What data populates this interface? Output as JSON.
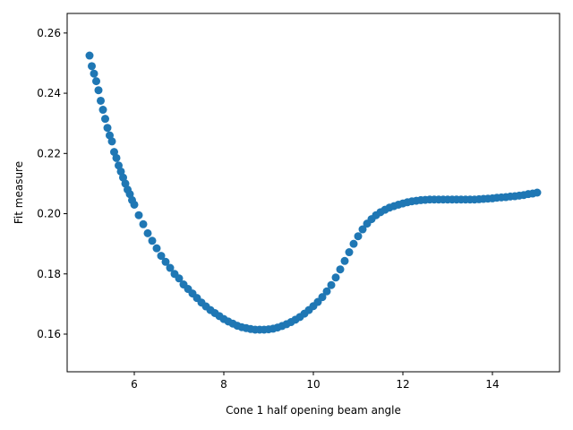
{
  "chart_data": {
    "type": "scatter",
    "title": "",
    "xlabel": "Cone 1 half opening beam angle",
    "ylabel": "Fit measure",
    "xlim": [
      4.5,
      15.5
    ],
    "ylim": [
      0.1475,
      0.2665
    ],
    "xticks": [
      6,
      8,
      10,
      12,
      14
    ],
    "yticks": [
      0.16,
      0.18,
      0.2,
      0.22,
      0.24,
      0.26
    ],
    "ytick_labels": [
      "0.16",
      "0.18",
      "0.20",
      "0.22",
      "0.24",
      "0.26"
    ],
    "grid": false,
    "legend": "none",
    "color": "#1f77b4",
    "series": [
      {
        "x": [
          5.0,
          5.05,
          5.1,
          5.15,
          5.2,
          5.25,
          5.3,
          5.35,
          5.4,
          5.45,
          5.5,
          5.55,
          5.6,
          5.65,
          5.7,
          5.75,
          5.8,
          5.85,
          5.9,
          5.95,
          6.0,
          6.1,
          6.2,
          6.3,
          6.4,
          6.5,
          6.6,
          6.7,
          6.8,
          6.9,
          7.0,
          7.1,
          7.2,
          7.3,
          7.4,
          7.5,
          7.6,
          7.7,
          7.8,
          7.9,
          8.0,
          8.1,
          8.2,
          8.3,
          8.4,
          8.5,
          8.6,
          8.7,
          8.8,
          8.9,
          9.0,
          9.1,
          9.2,
          9.3,
          9.4,
          9.5,
          9.6,
          9.7,
          9.8,
          9.9,
          10.0,
          10.1,
          10.2,
          10.3,
          10.4,
          10.5,
          10.6,
          10.7,
          10.8,
          10.9,
          11.0,
          11.1,
          11.2,
          11.3,
          11.4,
          11.5,
          11.6,
          11.7,
          11.8,
          11.9,
          12.0,
          12.1,
          12.2,
          12.3,
          12.4,
          12.5,
          12.6,
          12.7,
          12.8,
          12.9,
          13.0,
          13.1,
          13.2,
          13.3,
          13.4,
          13.5,
          13.6,
          13.7,
          13.8,
          13.9,
          14.0,
          14.1,
          14.2,
          14.3,
          14.4,
          14.5,
          14.6,
          14.7,
          14.8,
          14.9,
          15.0
        ],
        "y": [
          0.2525,
          0.249,
          0.2465,
          0.244,
          0.241,
          0.2375,
          0.2345,
          0.2315,
          0.2285,
          0.226,
          0.224,
          0.2205,
          0.2185,
          0.216,
          0.214,
          0.212,
          0.21,
          0.208,
          0.2065,
          0.2045,
          0.203,
          0.1995,
          0.1965,
          0.1935,
          0.191,
          0.1885,
          0.186,
          0.184,
          0.182,
          0.18,
          0.1785,
          0.1765,
          0.175,
          0.1735,
          0.172,
          0.1705,
          0.1692,
          0.168,
          0.167,
          0.166,
          0.165,
          0.1642,
          0.1635,
          0.1628,
          0.1623,
          0.162,
          0.1617,
          0.1615,
          0.1615,
          0.1615,
          0.1616,
          0.1618,
          0.1622,
          0.1627,
          0.1633,
          0.164,
          0.1648,
          0.1657,
          0.1668,
          0.168,
          0.1693,
          0.1707,
          0.1723,
          0.1742,
          0.1763,
          0.1788,
          0.1815,
          0.1843,
          0.1872,
          0.19,
          0.1925,
          0.1948,
          0.1967,
          0.1982,
          0.1995,
          0.2005,
          0.2013,
          0.202,
          0.2025,
          0.203,
          0.2034,
          0.2038,
          0.2041,
          0.2043,
          0.2045,
          0.2046,
          0.2047,
          0.2047,
          0.2047,
          0.2047,
          0.2047,
          0.2047,
          0.2047,
          0.2047,
          0.2047,
          0.2047,
          0.2047,
          0.2048,
          0.2049,
          0.205,
          0.2051,
          0.2053,
          0.2054,
          0.2055,
          0.2057,
          0.2058,
          0.206,
          0.2062,
          0.2065,
          0.2067,
          0.207
        ]
      }
    ]
  }
}
